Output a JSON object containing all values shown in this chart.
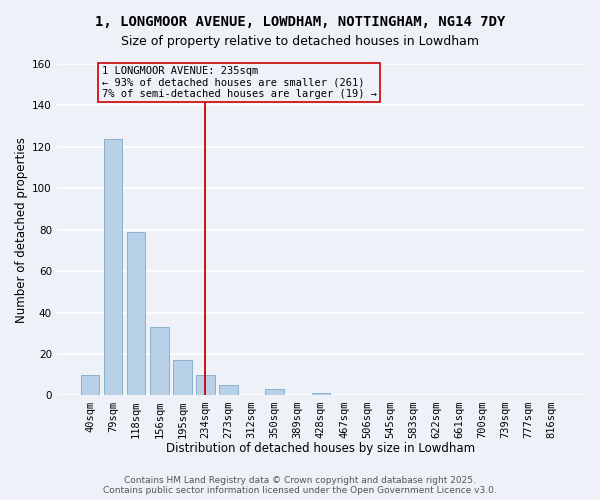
{
  "title_line1": "1, LONGMOOR AVENUE, LOWDHAM, NOTTINGHAM, NG14 7DY",
  "title_line2": "Size of property relative to detached houses in Lowdham",
  "xlabel": "Distribution of detached houses by size in Lowdham",
  "ylabel": "Number of detached properties",
  "bar_labels": [
    "40sqm",
    "79sqm",
    "118sqm",
    "156sqm",
    "195sqm",
    "234sqm",
    "273sqm",
    "312sqm",
    "350sqm",
    "389sqm",
    "428sqm",
    "467sqm",
    "506sqm",
    "545sqm",
    "583sqm",
    "622sqm",
    "661sqm",
    "700sqm",
    "739sqm",
    "777sqm",
    "816sqm"
  ],
  "bar_values": [
    10,
    124,
    79,
    33,
    17,
    10,
    5,
    0,
    3,
    0,
    1,
    0,
    0,
    0,
    0,
    0,
    0,
    0,
    0,
    0,
    0
  ],
  "bar_color": "#b8d0e8",
  "bar_edgecolor": "#8ab0cc",
  "annotation_line_bin": 5,
  "annotation_text": "1 LONGMOOR AVENUE: 235sqm\n← 93% of detached houses are smaller (261)\n7% of semi-detached houses are larger (19) →",
  "vline_color": "#cc0000",
  "box_edgecolor": "#cc0000",
  "ylim": [
    0,
    160
  ],
  "yticks": [
    0,
    20,
    40,
    60,
    80,
    100,
    120,
    140,
    160
  ],
  "footnote_line1": "Contains HM Land Registry data © Crown copyright and database right 2025.",
  "footnote_line2": "Contains public sector information licensed under the Open Government Licence v3.0.",
  "background_color": "#eef2f8",
  "grid_color": "#ffffff",
  "title_fontsize": 10,
  "subtitle_fontsize": 9,
  "axis_label_fontsize": 8.5,
  "tick_fontsize": 7.5,
  "annotation_fontsize": 7.5,
  "footnote_fontsize": 6.5
}
